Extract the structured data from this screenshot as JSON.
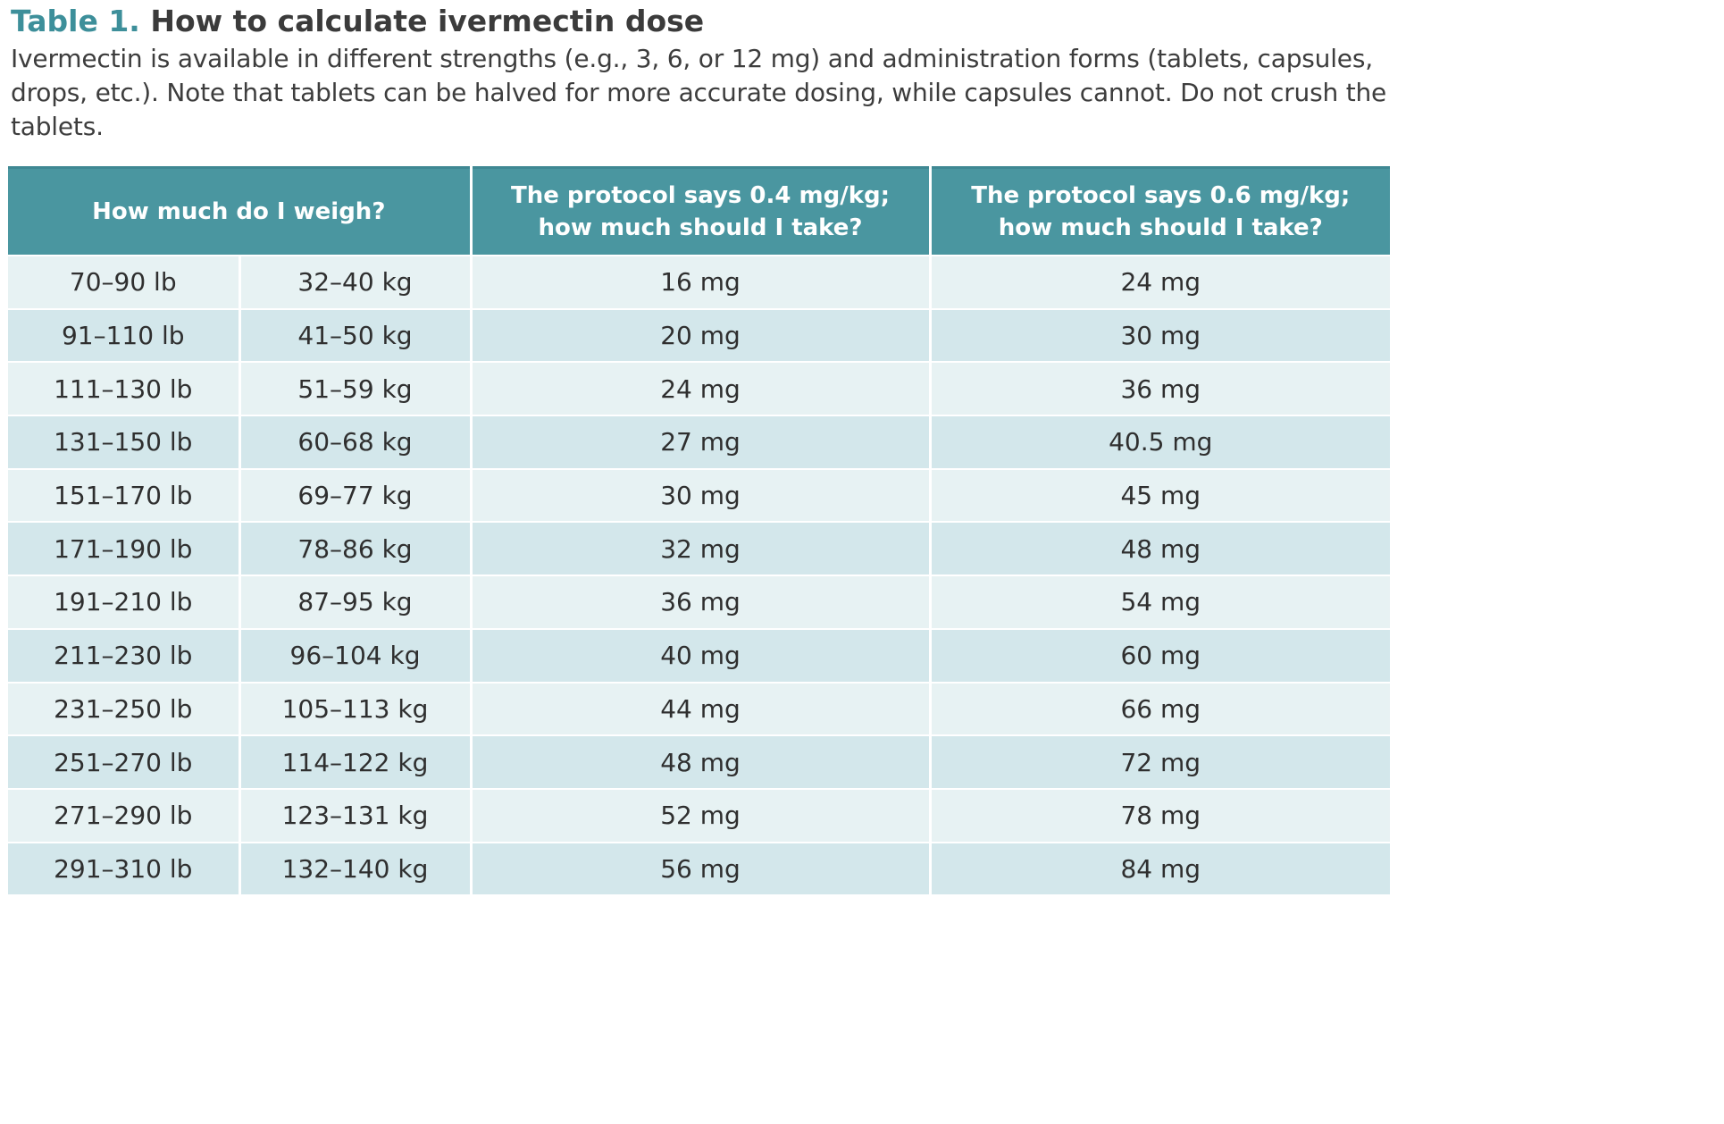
{
  "caption": {
    "label": "Table 1.",
    "title": "How to calculate ivermectin dose",
    "description": "Ivermectin is available in different strengths (e.g., 3, 6, or 12 mg) and administration forms (tablets, capsules, drops, etc.). Note that tablets can be halved for more accurate dosing, while capsules cannot. Do not crush the tablets."
  },
  "colors": {
    "accent": "#3d8f9a",
    "header_bg": "#4a96a0",
    "row_light": "#e7f2f3",
    "row_dark": "#d3e7eb"
  },
  "table": {
    "headers": {
      "weight": "How much do I weigh?",
      "dose_04_line1": "The protocol says 0.4 mg/kg;",
      "dose_04_line2": "how much should I take?",
      "dose_06_line1": "The protocol says 0.6 mg/kg;",
      "dose_06_line2": "how much should I take?"
    },
    "rows": [
      [
        "70–90 lb",
        "32–40 kg",
        "16 mg",
        "24 mg"
      ],
      [
        "91–110 lb",
        "41–50 kg",
        "20 mg",
        "30 mg"
      ],
      [
        "111–130 lb",
        "51–59 kg",
        "24 mg",
        "36 mg"
      ],
      [
        "131–150 lb",
        "60–68 kg",
        "27 mg",
        "40.5 mg"
      ],
      [
        "151–170 lb",
        "69–77 kg",
        "30 mg",
        "45 mg"
      ],
      [
        "171–190 lb",
        "78–86 kg",
        "32 mg",
        "48 mg"
      ],
      [
        "191–210 lb",
        "87–95 kg",
        "36 mg",
        "54 mg"
      ],
      [
        "211–230 lb",
        "96–104 kg",
        "40 mg",
        "60 mg"
      ],
      [
        "231–250 lb",
        "105–113 kg",
        "44 mg",
        "66 mg"
      ],
      [
        "251–270 lb",
        "114–122 kg",
        "48 mg",
        "72 mg"
      ],
      [
        "271–290 lb",
        "123–131 kg",
        "52 mg",
        "78 mg"
      ],
      [
        "291–310 lb",
        "132–140 kg",
        "56 mg",
        "84 mg"
      ]
    ]
  }
}
